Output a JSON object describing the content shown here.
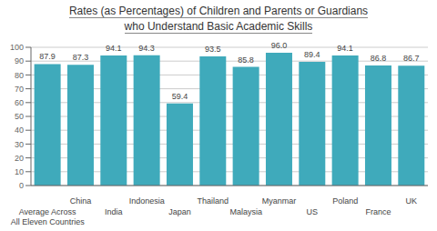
{
  "chart_data": {
    "type": "bar",
    "title": "Rates (as Percentages) of Children and Parents or Guardians\nwho Understand Basic Academic Skills",
    "categories": [
      "Average Across\nAll Eleven Countries",
      "China",
      "India",
      "Indonesia",
      "Japan",
      "Thailand",
      "Malaysia",
      "Myanmar",
      "US",
      "Poland",
      "France",
      "UK"
    ],
    "values": [
      87.9,
      87.3,
      94.1,
      94.3,
      59.4,
      93.5,
      85.8,
      96.0,
      89.4,
      94.1,
      86.8,
      86.7
    ],
    "value_labels": [
      "87.9",
      "87.3",
      "94.1",
      "94.3",
      "59.4",
      "93.5",
      "85.8",
      "96.0",
      "89.4",
      "94.1",
      "86.8",
      "86.7"
    ],
    "data_labels": true,
    "color": "#3faabb",
    "ylim": [
      0,
      100
    ],
    "yticks": [
      0,
      10,
      20,
      30,
      40,
      50,
      60,
      70,
      80,
      90,
      100
    ],
    "grid": true
  }
}
